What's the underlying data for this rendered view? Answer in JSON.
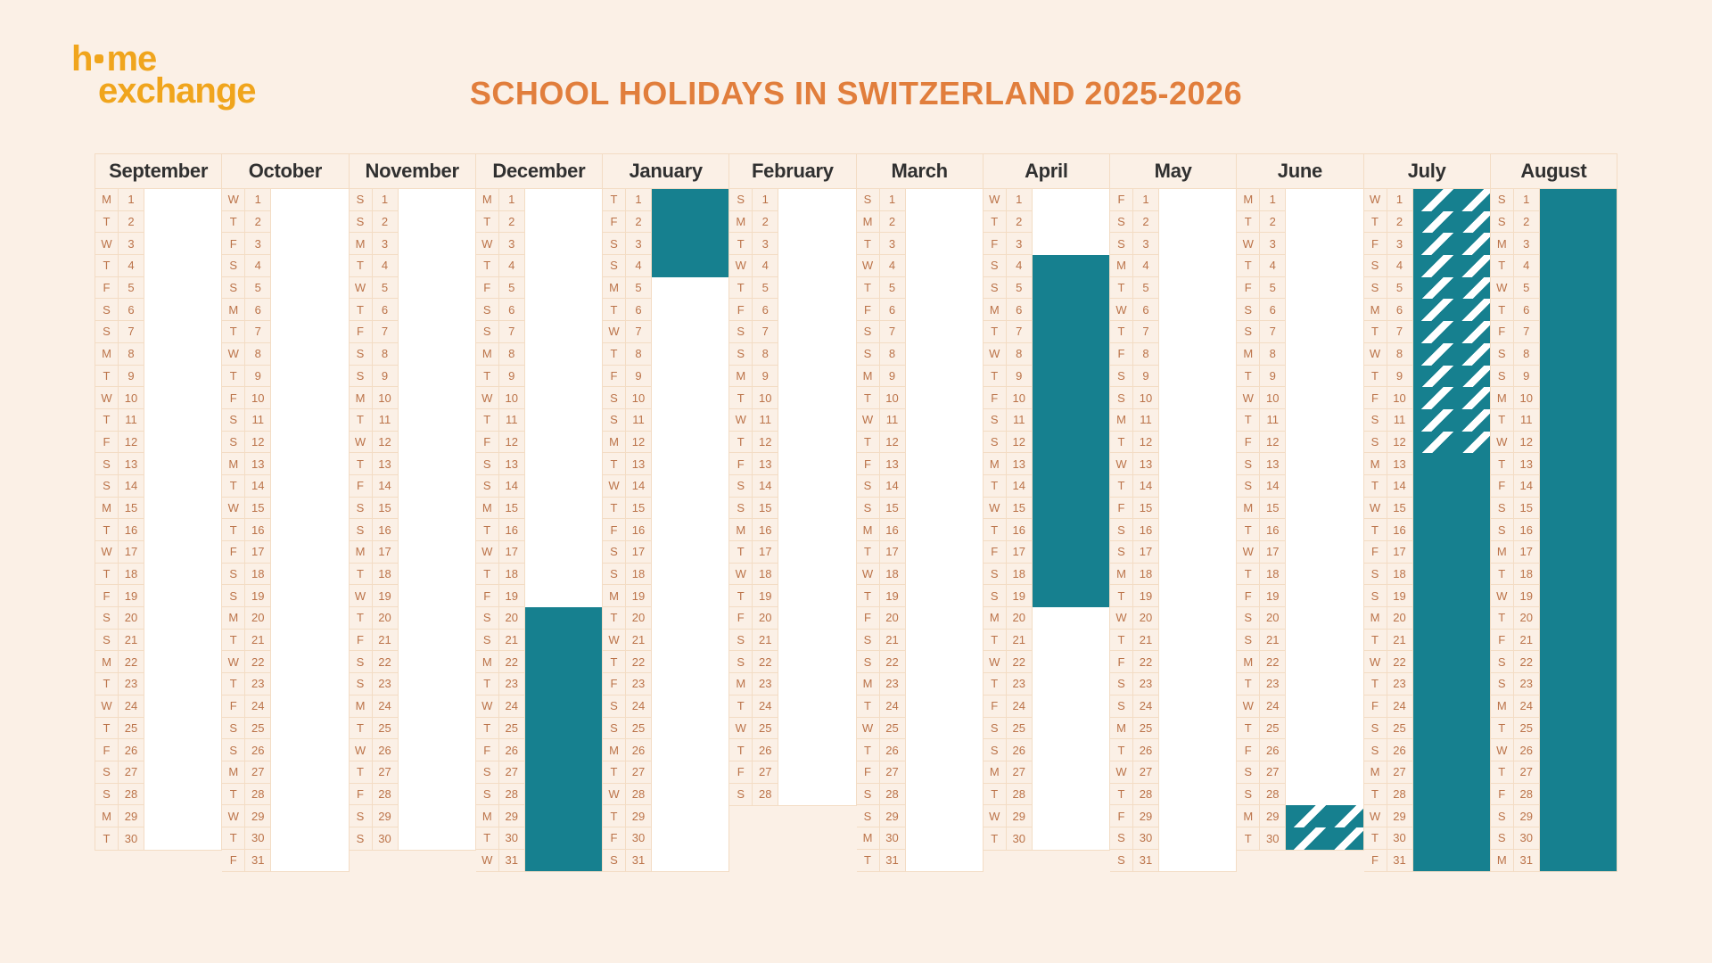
{
  "colors": {
    "background": "#FBF0E6",
    "holiday_teal": "#16808F",
    "cell_border": "#F3DCC4",
    "day_text": "#BB7349",
    "month_header_text": "#303030",
    "title_orange": "#E17E3C",
    "logo_amber": "#F0A51D",
    "indicator_empty": "#FFFFFF"
  },
  "logo": {
    "line1_prefix": "h",
    "line1_suffix": "me",
    "line2": "exchange"
  },
  "title": {
    "text": "SCHOOL HOLIDAYS IN SWITZERLAND 2025-2026"
  },
  "calendar": {
    "months": [
      {
        "name": "September",
        "days": 30,
        "letters": "MTWTFSSMTWTFSSMTWTFSSMTWTFSSMT",
        "highlights": []
      },
      {
        "name": "October",
        "days": 31,
        "letters": "WTFSSMTWTFSSMTWTFSSMTWTFSSMTWTF",
        "highlights": []
      },
      {
        "name": "November",
        "days": 30,
        "letters": "SSMTWTFSSMTWTFSSMTWTFSSMTWTFSS",
        "highlights": []
      },
      {
        "name": "December",
        "days": 31,
        "letters": "MTWTFSSMTWTFSSMTWTFSSMTWTFSSMTW",
        "highlights": [
          {
            "start": 20,
            "end": 31,
            "style": "solid"
          }
        ]
      },
      {
        "name": "January",
        "days": 31,
        "letters": "TFSSMTWTFSSMTWTFSSMTWTFSSMTWTFS",
        "highlights": [
          {
            "start": 1,
            "end": 4,
            "style": "solid"
          }
        ]
      },
      {
        "name": "February",
        "days": 28,
        "letters": "SMTWTFSSMTWTFSSMTWTFSSMTWTFS",
        "highlights": []
      },
      {
        "name": "March",
        "days": 31,
        "letters": "SMTWTFSSMTWTFSSMTWTFSSMTWTFSSMT",
        "highlights": []
      },
      {
        "name": "April",
        "days": 30,
        "letters": "WTFSSMTWTFSSMTWTFSSMTWTFSSMTWT",
        "highlights": [
          {
            "start": 4,
            "end": 19,
            "style": "solid"
          }
        ]
      },
      {
        "name": "May",
        "days": 31,
        "letters": "FSSMTWTFSSMTWTFSSMTWTFSSMTWTFSS",
        "highlights": []
      },
      {
        "name": "June",
        "days": 30,
        "letters": "MTWTFSSMTWTFSSMTWTFSSMTWTFSSMT",
        "highlights": [
          {
            "start": 29,
            "end": 30,
            "style": "striped"
          }
        ]
      },
      {
        "name": "July",
        "days": 31,
        "letters": "WTFSSMTWTFSSMTWTFSSMTWTFSSMTWTF",
        "highlights": [
          {
            "start": 1,
            "end": 12,
            "style": "striped"
          },
          {
            "start": 13,
            "end": 31,
            "style": "solid"
          }
        ]
      },
      {
        "name": "August",
        "days": 31,
        "letters": "SSMTWTFSSMTWTFSSMTWTFSSMTWTFSSM",
        "highlights": [
          {
            "start": 1,
            "end": 31,
            "style": "solid"
          }
        ]
      }
    ]
  }
}
